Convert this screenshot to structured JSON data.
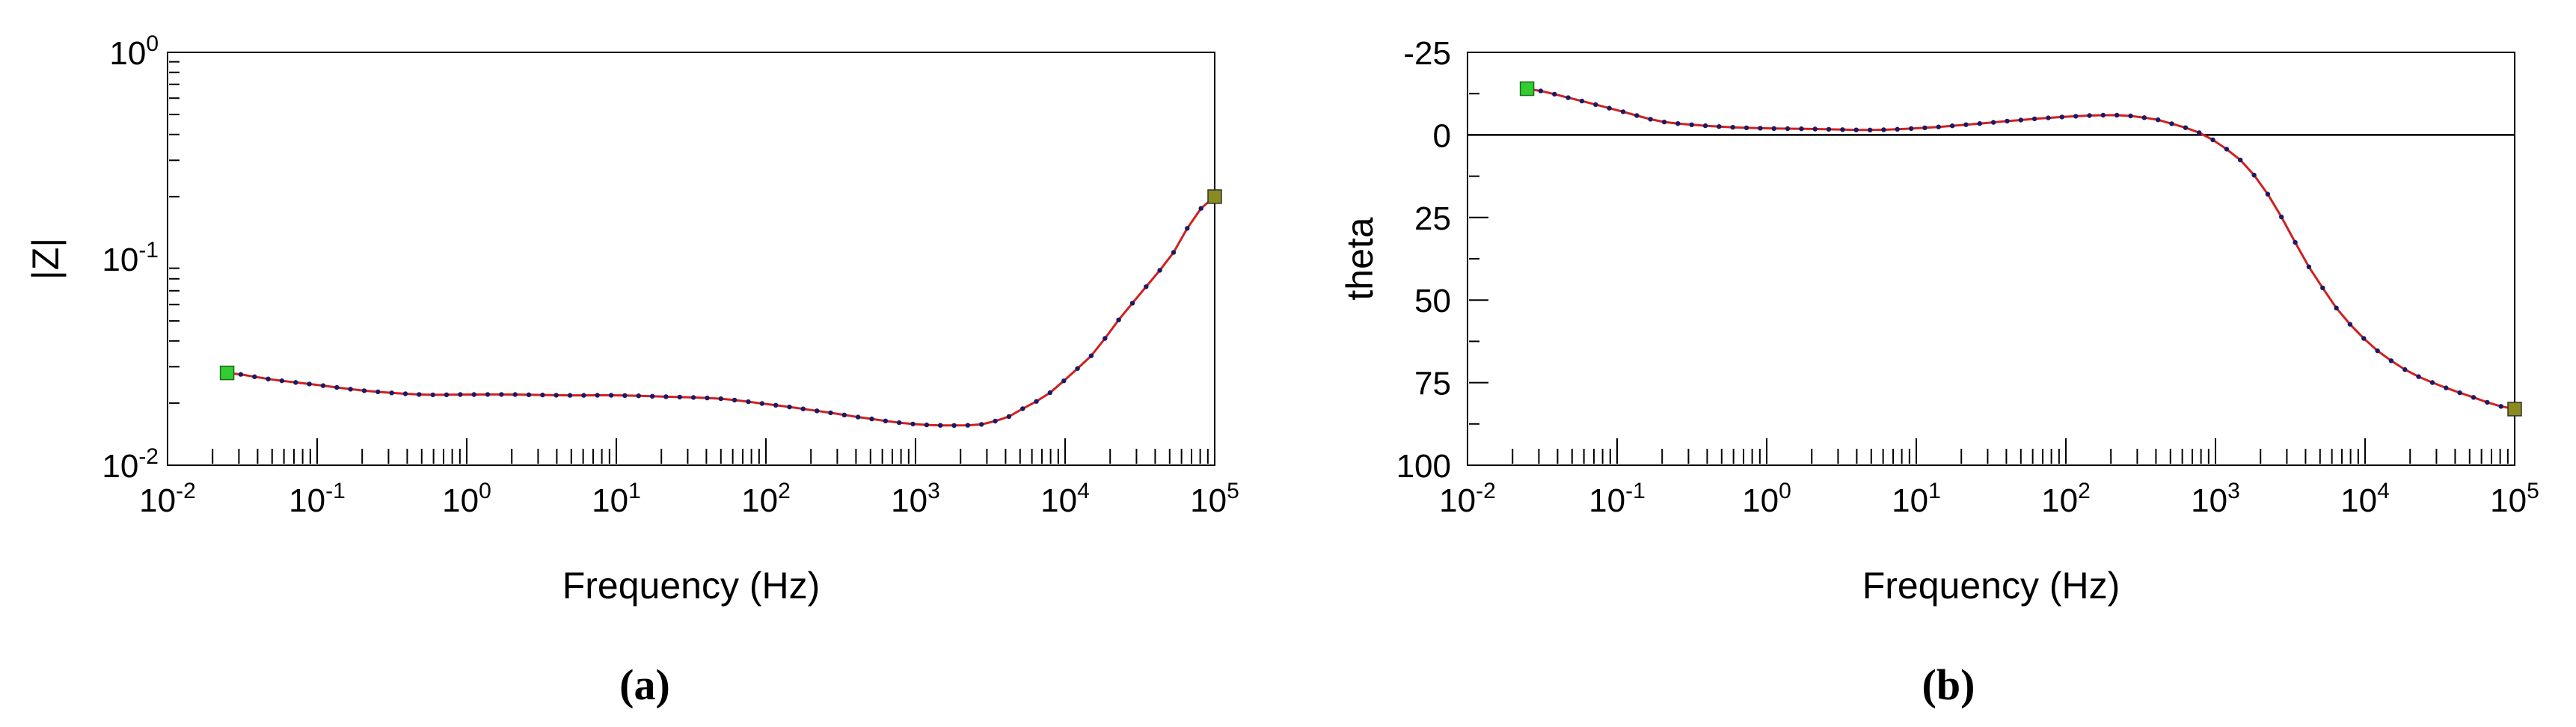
{
  "chart_data": [
    {
      "type": "line",
      "panel_label": "(a)",
      "xlabel": "Frequency (Hz)",
      "ylabel": "|Z|",
      "x_scale": "log",
      "y_scale": "log",
      "xlim": [
        0.01,
        100000
      ],
      "ylim": [
        0.01,
        1
      ],
      "x_tick_labels": [
        "10-2",
        "10-1",
        "100",
        "101",
        "102",
        "103",
        "104",
        "105"
      ],
      "y_tick_labels": [
        "10-2",
        "10-1",
        "100"
      ],
      "grid": false,
      "series": [
        {
          "line_color": "#d02020",
          "marker_color": "#1a1a66",
          "start_marker_color": "#33cc33",
          "end_marker_color": "#8a8a20",
          "x": [
            0.025,
            0.05,
            0.1,
            0.2,
            0.5,
            1,
            2,
            5,
            10,
            20,
            50,
            100,
            200,
            500,
            1000,
            2000,
            3000,
            5000,
            10000,
            20000,
            50000,
            100000
          ],
          "y": [
            0.028,
            0.026,
            0.0245,
            0.023,
            0.022,
            0.022,
            0.022,
            0.0218,
            0.0218,
            0.0215,
            0.021,
            0.0198,
            0.0185,
            0.0168,
            0.0158,
            0.0156,
            0.016,
            0.0185,
            0.026,
            0.045,
            0.1,
            0.2
          ]
        }
      ]
    },
    {
      "type": "line",
      "panel_label": "(b)",
      "xlabel": "Frequency (Hz)",
      "ylabel": "theta",
      "x_scale": "log",
      "y_scale": "linear",
      "y_inverted": true,
      "xlim": [
        0.01,
        100000
      ],
      "ylim": [
        -25,
        100
      ],
      "y_tick_values": [
        -25,
        0,
        25,
        50,
        75,
        100
      ],
      "x_tick_labels": [
        "10-2",
        "10-1",
        "100",
        "101",
        "102",
        "103",
        "104",
        "105"
      ],
      "y_tick_labels": [
        "-25",
        "0",
        "25",
        "50",
        "75",
        "100"
      ],
      "reference_line": 0,
      "grid": false,
      "series": [
        {
          "line_color": "#d02020",
          "marker_color": "#1a1a66",
          "start_marker_color": "#33cc33",
          "end_marker_color": "#8a8a20",
          "x": [
            0.025,
            0.05,
            0.1,
            0.2,
            0.5,
            1,
            2,
            5,
            10,
            20,
            50,
            100,
            200,
            300,
            500,
            1000,
            2000,
            5000,
            10000,
            20000,
            50000,
            100000
          ],
          "y": [
            -14,
            -11,
            -7.5,
            -4,
            -2.5,
            -2,
            -1.8,
            -1.5,
            -2,
            -3,
            -4.5,
            -5.5,
            -6,
            -5.5,
            -3.5,
            2,
            15,
            45,
            62,
            72,
            79,
            83
          ]
        }
      ]
    }
  ]
}
